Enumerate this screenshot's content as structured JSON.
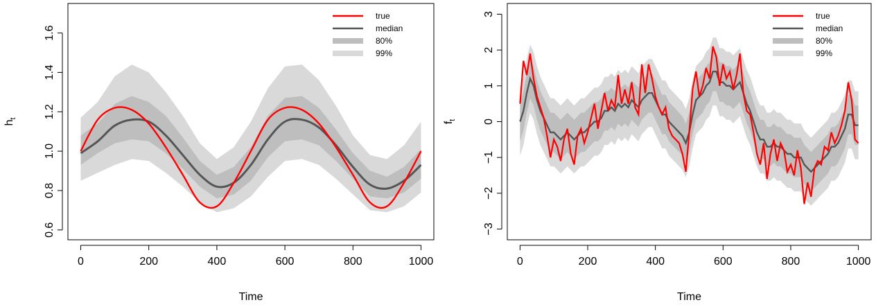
{
  "chart_data": [
    {
      "type": "line",
      "xlabel": "Time",
      "ylabel": "h",
      "ylabel_subscript": "t",
      "xlim": [
        0,
        1000
      ],
      "ylim": [
        0.55,
        1.75
      ],
      "xticks": [
        0,
        200,
        400,
        600,
        800,
        1000
      ],
      "xtick_labels": [
        "0",
        "200",
        "400",
        "600",
        "800",
        "1000"
      ],
      "yticks": [
        0.6,
        0.8,
        1.0,
        1.2,
        1.4,
        1.6
      ],
      "ytick_labels": [
        "0.6",
        "0.8",
        "1.0",
        "1.2",
        "1.4",
        "1.6"
      ],
      "legend_position": "top-right",
      "colors": {
        "true": "#ff0000",
        "median": "#555555",
        "band80": "#bebebe",
        "band99": "#d9d9d9"
      },
      "legend": [
        {
          "label": "true",
          "kind": "line",
          "color": "#ff0000"
        },
        {
          "label": "median",
          "kind": "line",
          "color": "#555555"
        },
        {
          "label": "80%",
          "kind": "band",
          "color": "#bebebe"
        },
        {
          "label": "99%",
          "kind": "band",
          "color": "#d9d9d9"
        }
      ],
      "x": [
        0,
        50,
        100,
        150,
        200,
        250,
        300,
        350,
        400,
        450,
        500,
        550,
        600,
        650,
        700,
        750,
        800,
        850,
        900,
        950,
        1000
      ],
      "series": [
        {
          "name": "true",
          "values": [
            1.0,
            1.16,
            1.22,
            1.21,
            1.14,
            1.02,
            0.88,
            0.74,
            0.72,
            0.84,
            1.0,
            1.16,
            1.22,
            1.21,
            1.14,
            1.02,
            0.88,
            0.74,
            0.72,
            0.84,
            1.0
          ]
        },
        {
          "name": "median",
          "values": [
            0.99,
            1.05,
            1.13,
            1.16,
            1.15,
            1.08,
            0.98,
            0.88,
            0.82,
            0.84,
            0.93,
            1.06,
            1.15,
            1.16,
            1.12,
            1.03,
            0.92,
            0.83,
            0.81,
            0.85,
            0.93
          ]
        }
      ],
      "bands": [
        {
          "name": "80%",
          "lower": [
            0.93,
            0.99,
            1.04,
            1.06,
            1.05,
            0.99,
            0.91,
            0.82,
            0.76,
            0.78,
            0.85,
            0.97,
            1.05,
            1.06,
            1.03,
            0.95,
            0.86,
            0.77,
            0.76,
            0.79,
            0.86
          ],
          "upper": [
            1.08,
            1.14,
            1.24,
            1.28,
            1.25,
            1.18,
            1.07,
            0.95,
            0.88,
            0.92,
            1.02,
            1.18,
            1.27,
            1.28,
            1.22,
            1.11,
            0.99,
            0.9,
            0.87,
            0.92,
            1.01
          ]
        },
        {
          "name": "99%",
          "lower": [
            0.85,
            0.89,
            0.93,
            0.96,
            0.95,
            0.89,
            0.82,
            0.74,
            0.69,
            0.71,
            0.77,
            0.87,
            0.95,
            0.96,
            0.93,
            0.86,
            0.78,
            0.7,
            0.69,
            0.72,
            0.79
          ],
          "upper": [
            1.17,
            1.25,
            1.38,
            1.44,
            1.4,
            1.3,
            1.18,
            1.04,
            0.96,
            1.02,
            1.15,
            1.32,
            1.43,
            1.44,
            1.36,
            1.23,
            1.08,
            0.98,
            0.96,
            1.03,
            1.15
          ]
        }
      ]
    },
    {
      "type": "line",
      "xlabel": "Time",
      "ylabel": "f",
      "ylabel_subscript": "t",
      "xlim": [
        0,
        1000
      ],
      "ylim": [
        -3.3,
        3.3
      ],
      "xticks": [
        0,
        200,
        400,
        600,
        800,
        1000
      ],
      "xtick_labels": [
        "0",
        "200",
        "400",
        "600",
        "800",
        "1000"
      ],
      "yticks": [
        -3,
        -2,
        -1,
        0,
        1,
        2,
        3
      ],
      "ytick_labels": [
        "−3",
        "−2",
        "−1",
        "0",
        "1",
        "2",
        "3"
      ],
      "legend_position": "top-right",
      "colors": {
        "true": "#ff0000",
        "median": "#555555",
        "band80": "#bebebe",
        "band99": "#d9d9d9"
      },
      "legend": [
        {
          "label": "true",
          "kind": "line",
          "color": "#ff0000"
        },
        {
          "label": "median",
          "kind": "line",
          "color": "#555555"
        },
        {
          "label": "80%",
          "kind": "band",
          "color": "#bebebe"
        },
        {
          "label": "99%",
          "kind": "band",
          "color": "#d9d9d9"
        }
      ],
      "x": [
        0,
        10,
        20,
        30,
        40,
        50,
        60,
        70,
        80,
        90,
        100,
        110,
        120,
        130,
        140,
        150,
        160,
        170,
        180,
        190,
        200,
        210,
        220,
        230,
        240,
        250,
        260,
        270,
        280,
        290,
        300,
        310,
        320,
        330,
        340,
        350,
        360,
        370,
        380,
        390,
        400,
        410,
        420,
        430,
        440,
        450,
        460,
        470,
        480,
        490,
        500,
        510,
        520,
        530,
        540,
        550,
        560,
        570,
        580,
        590,
        600,
        610,
        620,
        630,
        640,
        650,
        660,
        670,
        680,
        690,
        700,
        710,
        720,
        730,
        740,
        750,
        760,
        770,
        780,
        790,
        800,
        810,
        820,
        830,
        840,
        850,
        860,
        870,
        880,
        890,
        900,
        910,
        920,
        930,
        940,
        950,
        960,
        970,
        980,
        990,
        1000
      ],
      "series": [
        {
          "name": "true",
          "values": [
            0.5,
            1.7,
            1.3,
            1.9,
            1.2,
            0.7,
            0.4,
            0.1,
            -0.4,
            -1.0,
            -0.5,
            -0.7,
            -1.1,
            -0.5,
            -0.2,
            -0.9,
            -1.2,
            -0.4,
            -0.2,
            -0.6,
            -0.3,
            0.1,
            0.5,
            -0.2,
            0.3,
            0.8,
            0.3,
            0.6,
            0.4,
            1.3,
            0.5,
            0.9,
            0.5,
            1.1,
            0.4,
            0.2,
            1.6,
            0.8,
            1.6,
            1.2,
            0.7,
            0.4,
            0.2,
            0.4,
            -0.2,
            -0.4,
            -0.5,
            -0.6,
            -0.9,
            -1.4,
            -0.3,
            0.9,
            1.4,
            0.7,
            1.0,
            1.5,
            1.2,
            2.1,
            1.8,
            1.0,
            1.6,
            1.2,
            1.4,
            0.9,
            1.3,
            1.9,
            0.8,
            0.3,
            0.2,
            -0.3,
            -0.9,
            -1.2,
            -0.6,
            -1.6,
            -0.9,
            -0.5,
            -1.1,
            -0.6,
            -0.8,
            -1.4,
            -1.2,
            -1.5,
            -0.8,
            -1.3,
            -2.3,
            -1.7,
            -2.1,
            -1.3,
            -1.1,
            -1.2,
            -0.7,
            -0.8,
            -0.3,
            -0.6,
            -0.4,
            -0.1,
            0.3,
            1.1,
            0.6,
            -0.5,
            -0.6
          ]
        },
        {
          "name": "median",
          "values": [
            0.0,
            0.3,
            0.8,
            1.2,
            1.0,
            0.6,
            0.3,
            0.1,
            -0.1,
            -0.3,
            -0.3,
            -0.4,
            -0.5,
            -0.4,
            -0.3,
            -0.4,
            -0.5,
            -0.4,
            -0.3,
            -0.3,
            -0.2,
            -0.1,
            0.0,
            0.0,
            0.1,
            0.3,
            0.3,
            0.4,
            0.3,
            0.5,
            0.4,
            0.5,
            0.4,
            0.6,
            0.5,
            0.4,
            0.6,
            0.7,
            0.8,
            0.8,
            0.6,
            0.4,
            0.2,
            0.2,
            0.0,
            -0.1,
            -0.2,
            -0.3,
            -0.4,
            -0.6,
            -0.3,
            0.2,
            0.6,
            0.7,
            0.8,
            1.0,
            1.1,
            1.4,
            1.4,
            1.1,
            1.1,
            1.0,
            1.0,
            0.9,
            1.0,
            1.1,
            0.8,
            0.5,
            0.3,
            0.0,
            -0.3,
            -0.5,
            -0.5,
            -0.7,
            -0.7,
            -0.6,
            -0.7,
            -0.7,
            -0.8,
            -0.9,
            -0.9,
            -1.0,
            -1.0,
            -1.0,
            -1.2,
            -1.3,
            -1.4,
            -1.3,
            -1.2,
            -1.1,
            -1.0,
            -0.9,
            -0.7,
            -0.7,
            -0.6,
            -0.4,
            -0.2,
            0.2,
            0.2,
            -0.1,
            -0.1
          ]
        }
      ],
      "band_halfwidth": {
        "80%": 0.55,
        "99%": 0.95
      }
    }
  ]
}
